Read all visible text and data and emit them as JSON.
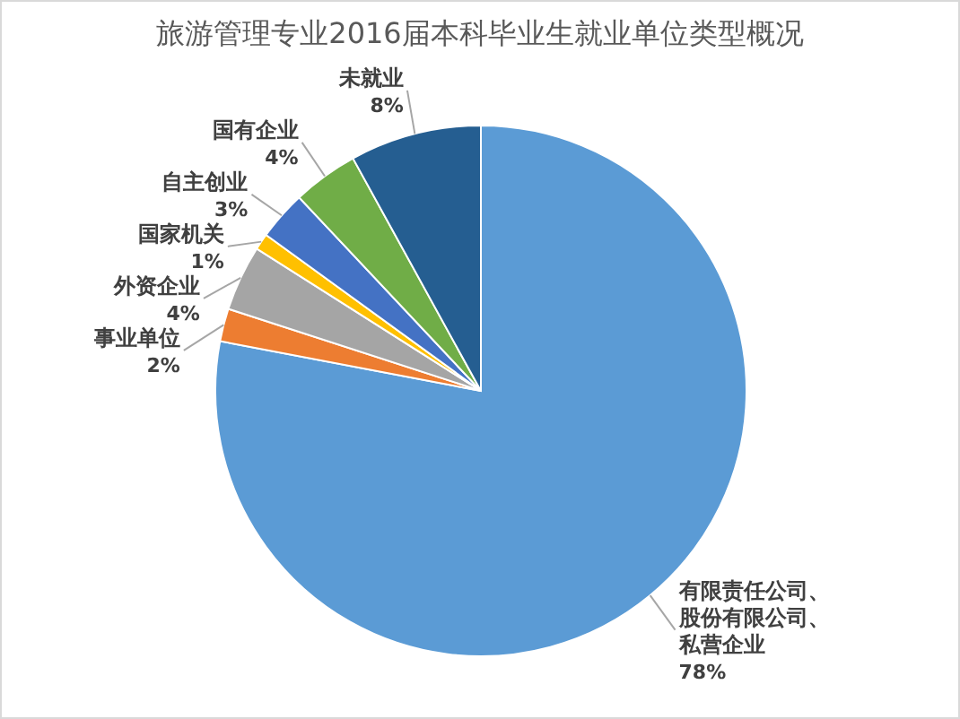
{
  "chart_data": {
    "type": "pie",
    "title": "旅游管理专业2016届本科毕业生就业单位类型概况",
    "categories": [
      "有限责任公司、股份有限公司、私营企业",
      "事业单位",
      "外资企业",
      "国家机关",
      "自主创业",
      "国有企业",
      "未就业"
    ],
    "values": [
      78,
      2,
      4,
      1,
      3,
      4,
      8
    ],
    "colors": [
      "#5b9bd5",
      "#ed7d31",
      "#a5a5a5",
      "#ffc000",
      "#4472c4",
      "#70ad47",
      "#255e91"
    ],
    "value_labels": [
      "78%",
      "2%",
      "4%",
      "1%",
      "3%",
      "4%",
      "8%"
    ]
  }
}
